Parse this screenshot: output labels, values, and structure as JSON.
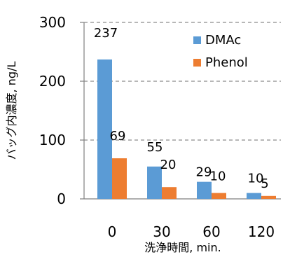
{
  "chart_data": {
    "type": "bar",
    "title": "",
    "xlabel": "洗浄時間, min.",
    "ylabel": "バッグ内濃度, ng/L",
    "categories": [
      "0",
      "30",
      "60",
      "120"
    ],
    "series": [
      {
        "name": "DMAc",
        "values": [
          237,
          55,
          29,
          10
        ],
        "labels": [
          "237",
          "55",
          "29",
          "10"
        ],
        "color": "#5B9BD5"
      },
      {
        "name": "Phenol",
        "values": [
          69,
          20,
          10,
          5
        ],
        "labels": [
          "69",
          "20",
          "10",
          "5"
        ],
        "color": "#ED7D31"
      }
    ],
    "ylim": [
      0,
      300
    ],
    "yticks": [
      0,
      100,
      200,
      300
    ],
    "grid": true,
    "grid_style": "dashed",
    "legend_position": "top-right"
  }
}
